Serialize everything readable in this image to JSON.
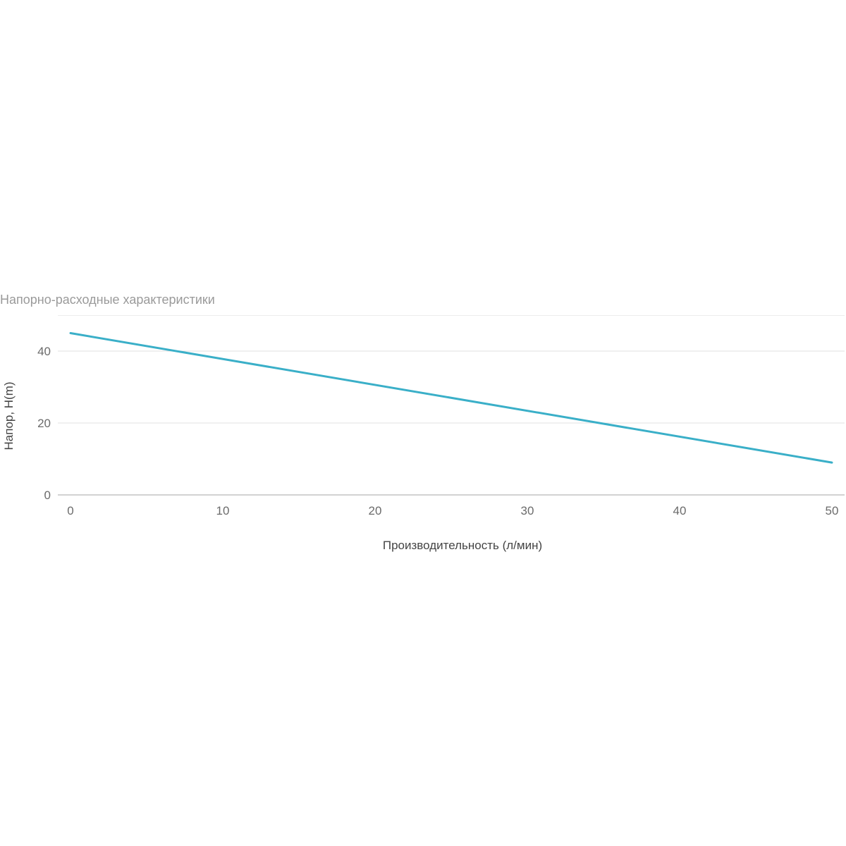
{
  "chart_data": {
    "type": "line",
    "title": "Напорно-расходные характеристики",
    "xlabel": "Производительность (л/мин)",
    "ylabel": "Напор, H(m)",
    "x_ticks": [
      "0",
      "10",
      "20",
      "30",
      "40",
      "50"
    ],
    "y_ticks": [
      "0",
      "20",
      "40"
    ],
    "xlim": [
      0,
      50
    ],
    "ylim": [
      0,
      50
    ],
    "grid": true,
    "legend": "none",
    "series": [
      {
        "color": "#3aafc8",
        "x": [
          0,
          50
        ],
        "y": [
          45,
          9
        ]
      }
    ]
  }
}
